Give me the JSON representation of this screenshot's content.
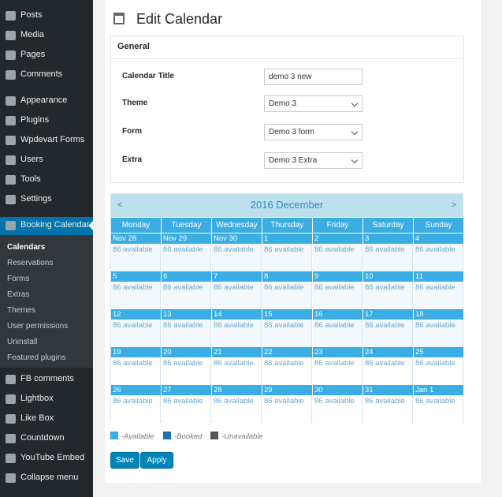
{
  "sidebar": {
    "items": [
      "Posts",
      "Media",
      "Pages",
      "Comments",
      "Appearance",
      "Plugins",
      "Wpdevart Forms",
      "Users",
      "Tools",
      "Settings"
    ],
    "active": "Booking Calendar",
    "submenu": [
      "Calendars",
      "Reservations",
      "Forms",
      "Extras",
      "Themes",
      "User permissions",
      "Uninstall",
      "Featured plugins"
    ],
    "more": [
      "FB comments",
      "Lightbox",
      "Like Box",
      "Countdown",
      "YouTube Embed"
    ],
    "collapse": "Collapse menu"
  },
  "header": {
    "title": "Edit Calendar"
  },
  "general": {
    "heading": "General",
    "fields": [
      {
        "label": "Calendar Title",
        "value": "demo 3 new"
      },
      {
        "label": "Theme",
        "value": "Demo 3"
      },
      {
        "label": "Form",
        "value": "Demo 3 form"
      },
      {
        "label": "Extra",
        "value": "Demo 3 Extra"
      }
    ]
  },
  "calendar": {
    "prev": "<",
    "title": "2016 December",
    "next": ">",
    "weekdays": [
      "Monday",
      "Tuesday",
      "Wednesday",
      "Thursday",
      "Friday",
      "Saturday",
      "Sunday"
    ],
    "weeks": [
      [
        {
          "day": "Nov 28",
          "status": "86 available"
        },
        {
          "day": "Nov 29",
          "status": "86 available"
        },
        {
          "day": "Nov 30",
          "status": "86 available"
        },
        {
          "day": "1",
          "status": "86 available"
        },
        {
          "day": "2",
          "status": "86 available"
        },
        {
          "day": "3",
          "status": "86 available"
        },
        {
          "day": "4",
          "status": "86 available"
        }
      ],
      [
        {
          "day": "5",
          "status": "86 available"
        },
        {
          "day": "6",
          "status": "86 available"
        },
        {
          "day": "7",
          "status": "86 available"
        },
        {
          "day": "8",
          "status": "86 available"
        },
        {
          "day": "9",
          "status": "86 available"
        },
        {
          "day": "10",
          "status": "86 available"
        },
        {
          "day": "11",
          "status": "86 available"
        }
      ],
      [
        {
          "day": "12",
          "status": "86 available"
        },
        {
          "day": "13",
          "status": "86 available"
        },
        {
          "day": "14",
          "status": "86 available"
        },
        {
          "day": "15",
          "status": "86 available"
        },
        {
          "day": "16",
          "status": "86 available"
        },
        {
          "day": "17",
          "status": "86 available"
        },
        {
          "day": "18",
          "status": "86 available"
        }
      ],
      [
        {
          "day": "19",
          "status": "86 available"
        },
        {
          "day": "20",
          "status": "86 available"
        },
        {
          "day": "21",
          "status": "86 available"
        },
        {
          "day": "22",
          "status": "86 available"
        },
        {
          "day": "23",
          "status": "86 available"
        },
        {
          "day": "24",
          "status": "86 available"
        },
        {
          "day": "25",
          "status": "86 available"
        }
      ],
      [
        {
          "day": "26",
          "status": "86 available"
        },
        {
          "day": "27",
          "status": "86 available"
        },
        {
          "day": "28",
          "status": "86 available"
        },
        {
          "day": "29",
          "status": "86 available"
        },
        {
          "day": "30",
          "status": "86 available"
        },
        {
          "day": "31",
          "status": "86 available"
        },
        {
          "day": "Jan 1",
          "status": "86 available"
        }
      ]
    ]
  },
  "legend": [
    {
      "label": "-Available",
      "color": "#3aade4"
    },
    {
      "label": "-Booked",
      "color": "#1e6fb0"
    },
    {
      "label": "-Unavailable",
      "color": "#555555"
    }
  ],
  "buttons": [
    "Save",
    "Apply"
  ]
}
